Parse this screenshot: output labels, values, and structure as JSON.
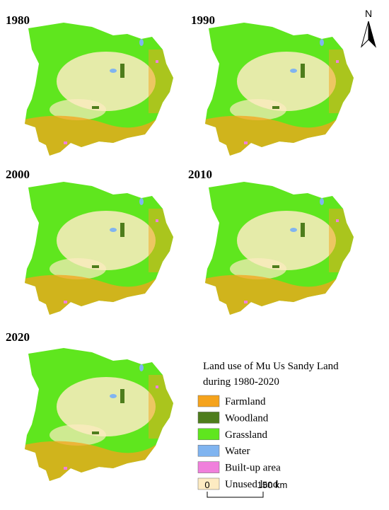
{
  "panels": [
    {
      "year": "1980"
    },
    {
      "year": "1990"
    },
    {
      "year": "2000"
    },
    {
      "year": "2010"
    },
    {
      "year": "2020"
    }
  ],
  "north": "N",
  "legend": {
    "title_lines": [
      "Land use of Mu Us Sandy Land",
      "during 1980-2020"
    ],
    "items": [
      {
        "label": "Farmland",
        "color": "#f5a31c"
      },
      {
        "label": "Woodland",
        "color": "#4e7d1c"
      },
      {
        "label": "Grassland",
        "color": "#5fe61e"
      },
      {
        "label": "Water",
        "color": "#80b4f0"
      },
      {
        "label": "Built-up area",
        "color": "#f080dc"
      },
      {
        "label": "Unused land",
        "color": "#fdebc2"
      }
    ]
  },
  "scale_bar": {
    "start": "0",
    "end": "150 km"
  }
}
